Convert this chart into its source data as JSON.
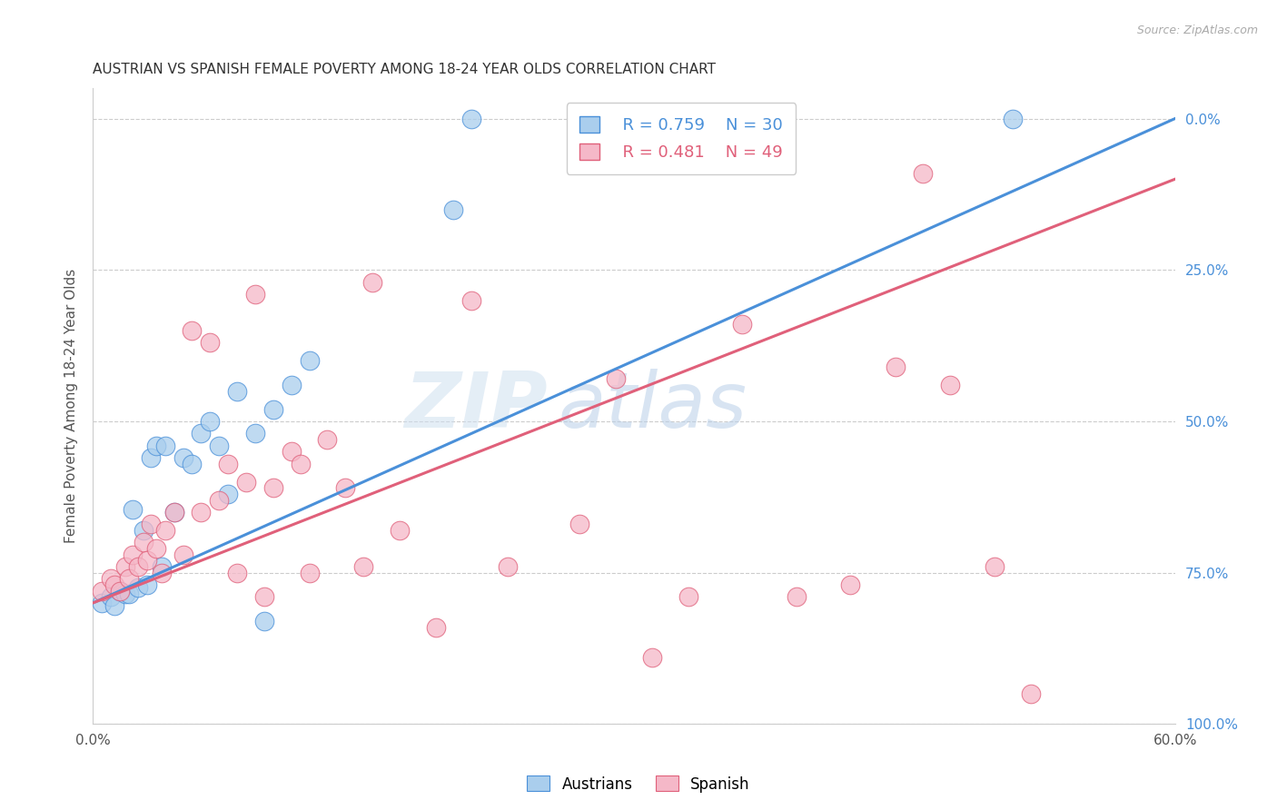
{
  "title": "AUSTRIAN VS SPANISH FEMALE POVERTY AMONG 18-24 YEAR OLDS CORRELATION CHART",
  "source": "Source: ZipAtlas.com",
  "ylabel": "Female Poverty Among 18-24 Year Olds",
  "xlabel_austrians": "Austrians",
  "xlabel_spanish": "Spanish",
  "xmin": 0.0,
  "xmax": 0.6,
  "ymin": 0.0,
  "ymax": 1.05,
  "yticks": [
    0.0,
    0.25,
    0.5,
    0.75,
    1.0
  ],
  "ytick_labels_right": [
    "100.0%",
    "75.0%",
    "50.0%",
    "25.0%",
    "0.0%"
  ],
  "legend_r_austrians": "R = 0.759",
  "legend_n_austrians": "N = 30",
  "legend_r_spanish": "R = 0.481",
  "legend_n_spanish": "N = 49",
  "color_austrians": "#aaceed",
  "color_spanish": "#f5b8c8",
  "line_color_austrians": "#4a90d9",
  "line_color_spanish": "#e0607a",
  "watermark_zip": "ZIP",
  "watermark_atlas": "atlas",
  "blue_line_x0": 0.0,
  "blue_line_y0": 0.2,
  "blue_line_x1": 0.6,
  "blue_line_y1": 1.0,
  "pink_line_x0": 0.0,
  "pink_line_y0": 0.2,
  "pink_line_x1": 0.6,
  "pink_line_y1": 0.9,
  "austrians_x": [
    0.005,
    0.01,
    0.012,
    0.015,
    0.018,
    0.02,
    0.022,
    0.025,
    0.028,
    0.03,
    0.032,
    0.035,
    0.038,
    0.04,
    0.045,
    0.05,
    0.055,
    0.06,
    0.065,
    0.07,
    0.075,
    0.08,
    0.09,
    0.095,
    0.1,
    0.11,
    0.12,
    0.2,
    0.21,
    0.51
  ],
  "austrians_y": [
    0.2,
    0.21,
    0.195,
    0.22,
    0.215,
    0.215,
    0.355,
    0.225,
    0.32,
    0.23,
    0.44,
    0.46,
    0.26,
    0.46,
    0.35,
    0.44,
    0.43,
    0.48,
    0.5,
    0.46,
    0.38,
    0.55,
    0.48,
    0.17,
    0.52,
    0.56,
    0.6,
    0.85,
    1.0,
    1.0
  ],
  "spanish_x": [
    0.005,
    0.01,
    0.012,
    0.015,
    0.018,
    0.02,
    0.022,
    0.025,
    0.028,
    0.03,
    0.032,
    0.035,
    0.038,
    0.04,
    0.045,
    0.05,
    0.055,
    0.06,
    0.065,
    0.07,
    0.075,
    0.08,
    0.085,
    0.09,
    0.095,
    0.1,
    0.11,
    0.115,
    0.12,
    0.13,
    0.14,
    0.15,
    0.155,
    0.17,
    0.19,
    0.21,
    0.23,
    0.27,
    0.29,
    0.31,
    0.33,
    0.36,
    0.39,
    0.42,
    0.445,
    0.46,
    0.475,
    0.5,
    0.52
  ],
  "spanish_y": [
    0.22,
    0.24,
    0.23,
    0.22,
    0.26,
    0.24,
    0.28,
    0.26,
    0.3,
    0.27,
    0.33,
    0.29,
    0.25,
    0.32,
    0.35,
    0.28,
    0.65,
    0.35,
    0.63,
    0.37,
    0.43,
    0.25,
    0.4,
    0.71,
    0.21,
    0.39,
    0.45,
    0.43,
    0.25,
    0.47,
    0.39,
    0.26,
    0.73,
    0.32,
    0.16,
    0.7,
    0.26,
    0.33,
    0.57,
    0.11,
    0.21,
    0.66,
    0.21,
    0.23,
    0.59,
    0.91,
    0.56,
    0.26,
    0.05
  ]
}
